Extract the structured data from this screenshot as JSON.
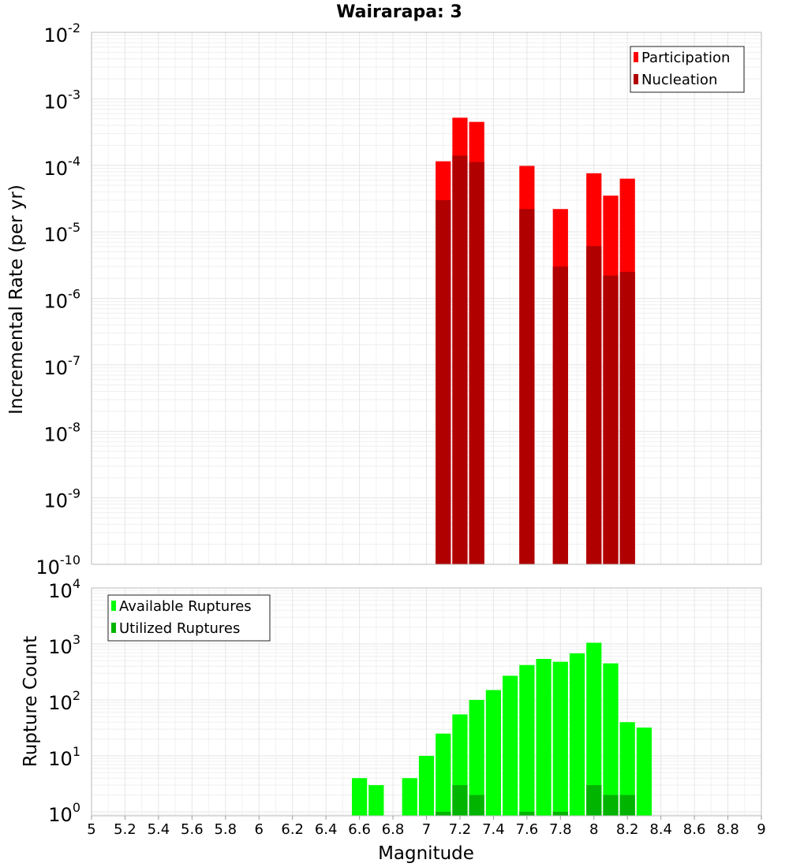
{
  "chart_data": [
    {
      "type": "bar",
      "title": "Wairarapa: 3",
      "xlabel": "",
      "ylabel": "Incremental Rate (per yr)",
      "y_scale": "log",
      "ylim": [
        1e-10,
        0.01
      ],
      "xlim": [
        5,
        9
      ],
      "bar_width": 0.1,
      "x": [
        7.1,
        7.2,
        7.3,
        7.4,
        7.5,
        7.6,
        7.7,
        7.8,
        7.9,
        8.0,
        8.1,
        8.2,
        8.3
      ],
      "y_tick_exponents": [
        -10,
        -9,
        -8,
        -7,
        -6,
        -5,
        -4,
        -3,
        -2
      ],
      "legend_position": "top-right",
      "grid": true,
      "series": [
        {
          "name": "Participation",
          "color": "#ff0000",
          "values": [
            0.000115,
            0.00052,
            0.00045,
            null,
            null,
            9.8e-05,
            null,
            2.2e-05,
            null,
            7.6e-05,
            3.5e-05,
            6.3e-05,
            null
          ]
        },
        {
          "name": "Nucleation",
          "color": "#b00000",
          "values": [
            3e-05,
            0.00014,
            0.000112,
            null,
            null,
            2.2e-05,
            null,
            3e-06,
            null,
            6.1e-06,
            2.2e-06,
            2.5e-06,
            null
          ]
        }
      ]
    },
    {
      "type": "bar",
      "title": "",
      "xlabel": "Magnitude",
      "ylabel": "Rupture Count",
      "y_scale": "log",
      "ylim": [
        0.85,
        10000
      ],
      "xlim": [
        5,
        9
      ],
      "bar_width": 0.1,
      "x_ticks": [
        "5",
        "5.2",
        "5.4",
        "5.6",
        "5.8",
        "6",
        "6.2",
        "6.4",
        "6.6",
        "6.8",
        "7",
        "7.2",
        "7.4",
        "7.6",
        "7.8",
        "8",
        "8.2",
        "8.4",
        "8.6",
        "8.8",
        "9"
      ],
      "y_tick_exponents": [
        0,
        1,
        2,
        3,
        4
      ],
      "x": [
        6.6,
        6.7,
        6.8,
        6.9,
        7.0,
        7.1,
        7.2,
        7.3,
        7.4,
        7.5,
        7.6,
        7.7,
        7.8,
        7.9,
        8.0,
        8.1,
        8.2,
        8.3
      ],
      "legend_position": "top-left",
      "grid": true,
      "series": [
        {
          "name": "Available Ruptures",
          "color": "#00ff00",
          "values": [
            4,
            3,
            null,
            4,
            10,
            25,
            55,
            100,
            150,
            270,
            420,
            540,
            480,
            680,
            1050,
            450,
            40,
            32
          ]
        },
        {
          "name": "Utilized Ruptures",
          "color": "#00b400",
          "values": [
            null,
            null,
            null,
            null,
            null,
            1,
            3,
            2,
            null,
            null,
            1,
            null,
            1,
            null,
            3,
            2,
            2,
            null
          ]
        }
      ]
    }
  ]
}
